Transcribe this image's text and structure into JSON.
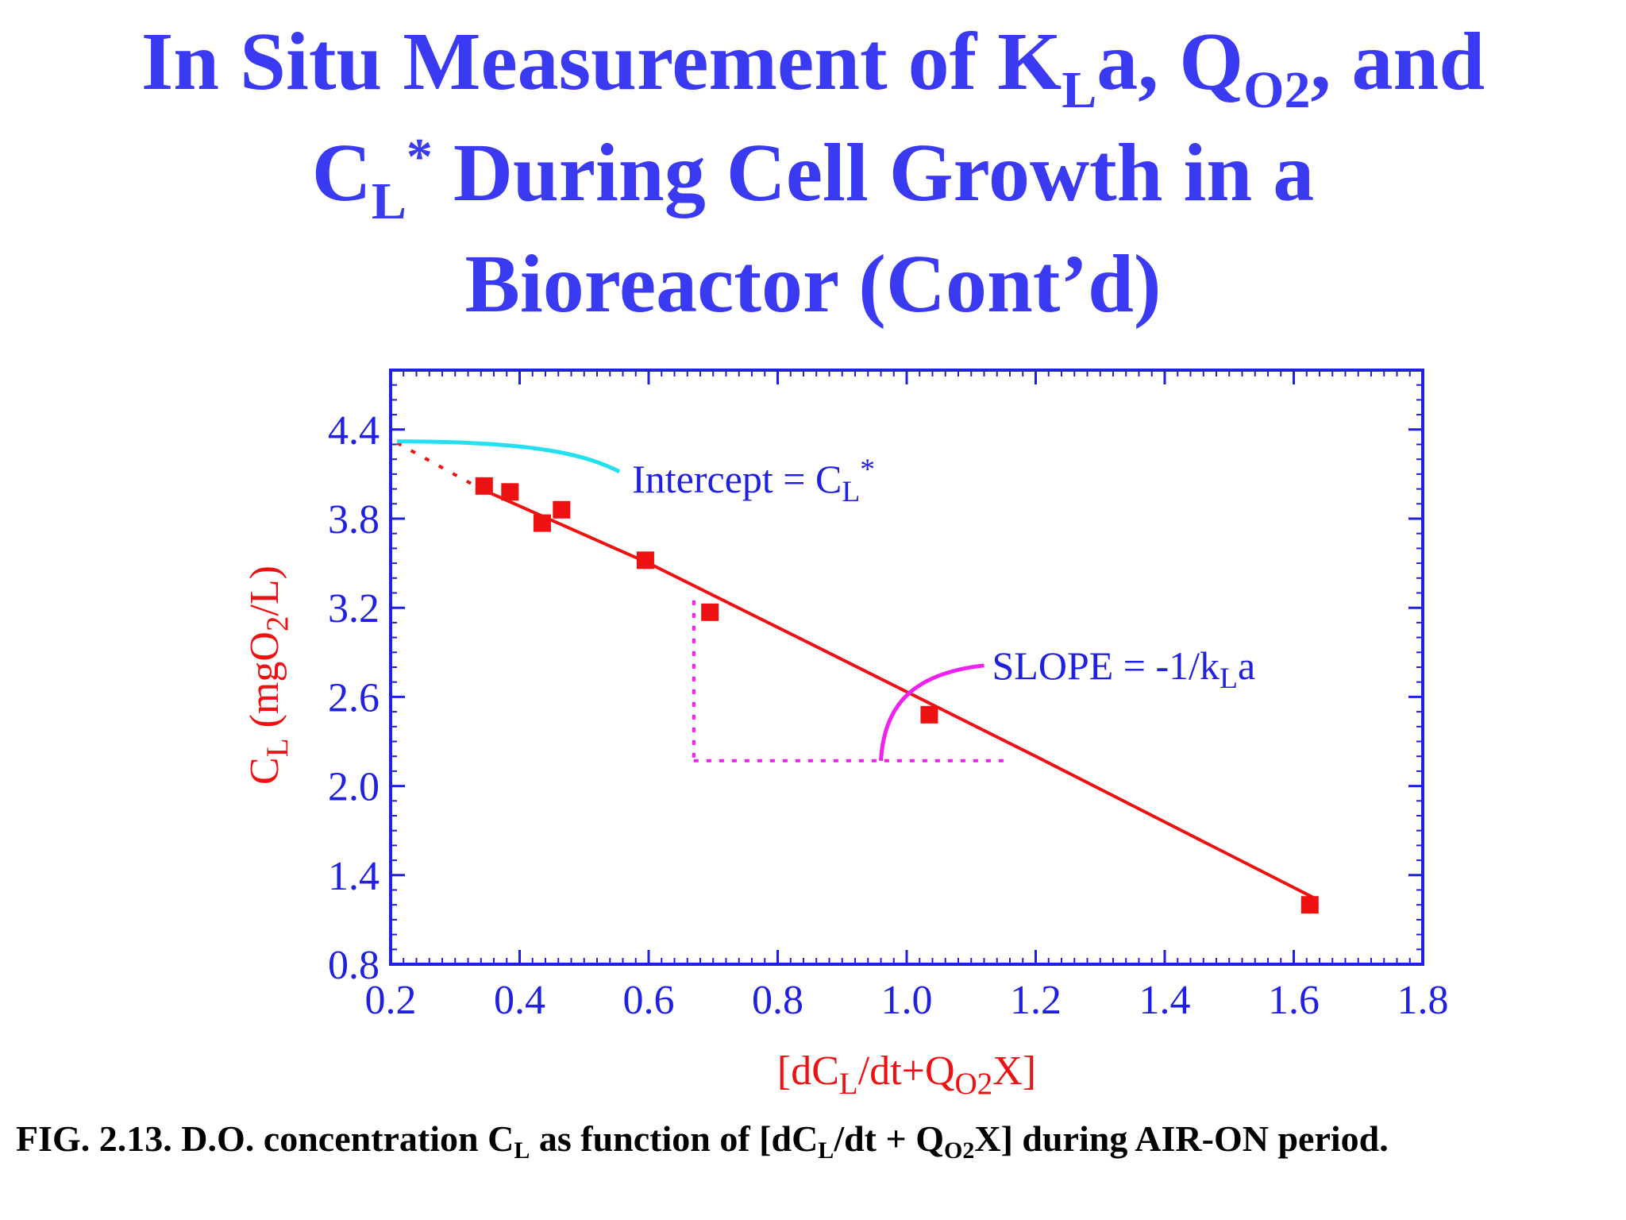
{
  "slide": {
    "title_parts": [
      "In Situ Measurement of K",
      "L",
      "a, Q",
      "O2",
      ", and",
      "C",
      "L",
      "*",
      " During Cell Growth in a",
      "Bioreactor (Cont’d)"
    ],
    "caption_parts": [
      "FIG. 2.13.  D.O. concentration C",
      "L",
      " as function of [dC",
      "L",
      "/dt  + Q",
      "O2",
      "X] during AIR-ON period."
    ]
  },
  "colors": {
    "title": "#3a3af2",
    "axes": "#2020e0",
    "data": "#ee1111",
    "intercept_curve": "#22e0f0",
    "slope_marker": "#f020f0",
    "caption": "#000000"
  },
  "chart_data": {
    "type": "scatter",
    "title": "",
    "xlabel_parts": [
      "[dC",
      "L",
      "/dt+Q",
      "O2",
      "X]"
    ],
    "ylabel_parts": [
      "C",
      "L",
      " (mgO",
      "2",
      "/L)"
    ],
    "xlim": [
      0.2,
      1.8
    ],
    "ylim": [
      0.8,
      4.8
    ],
    "xticks": [
      "0.2",
      "0.4",
      "0.6",
      "0.8",
      "1.0",
      "1.2",
      "1.4",
      "1.6",
      "1.8"
    ],
    "yticks": [
      "0.8",
      "1.4",
      "2.0",
      "2.6",
      "3.2",
      "3.8",
      "4.4"
    ],
    "series": [
      {
        "points": [
          {
            "x": 0.345,
            "y": 4.02
          },
          {
            "x": 0.385,
            "y": 3.98
          },
          {
            "x": 0.435,
            "y": 3.77
          },
          {
            "x": 0.465,
            "y": 3.86
          },
          {
            "x": 0.595,
            "y": 3.52
          },
          {
            "x": 0.695,
            "y": 3.17
          },
          {
            "x": 1.035,
            "y": 2.48
          },
          {
            "x": 1.625,
            "y": 1.2
          }
        ]
      }
    ],
    "fit_line": [
      {
        "x": 0.34,
        "y": 4.0
      },
      {
        "x": 0.6,
        "y": 3.5
      },
      {
        "x": 0.85,
        "y": 2.96
      },
      {
        "x": 1.2,
        "y": 2.2
      },
      {
        "x": 1.63,
        "y": 1.25
      }
    ],
    "extrapolation": [
      {
        "x": 0.21,
        "y": 4.31
      },
      {
        "x": 0.34,
        "y": 4.0
      }
    ],
    "annotations": {
      "intercept": {
        "label_parts": [
          "Intercept = C",
          "L",
          "*"
        ],
        "anchor": {
          "x": 0.21,
          "y": 4.32
        }
      },
      "slope": {
        "label_parts": [
          "SLOPE = -1/k",
          "L",
          "a"
        ],
        "triangle": {
          "x_start": 0.67,
          "x_end": 1.16,
          "y_top": 3.25,
          "y_bottom": 2.17
        }
      }
    },
    "grid": false
  }
}
